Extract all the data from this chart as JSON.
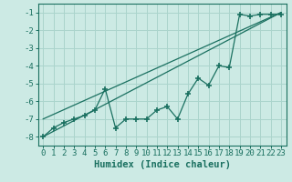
{
  "xlabel": "Humidex (Indice chaleur)",
  "xlim": [
    -0.5,
    23.5
  ],
  "ylim": [
    -8.5,
    -0.5
  ],
  "yticks": [
    -8,
    -7,
    -6,
    -5,
    -4,
    -3,
    -2,
    -1
  ],
  "xticks": [
    0,
    1,
    2,
    3,
    4,
    5,
    6,
    7,
    8,
    9,
    10,
    11,
    12,
    13,
    14,
    15,
    16,
    17,
    18,
    19,
    20,
    21,
    22,
    23
  ],
  "line_color": "#1a7060",
  "bg_color": "#cceae4",
  "grid_color": "#aad4cc",
  "line1_x": [
    0,
    1,
    2,
    3,
    4,
    5,
    6,
    7,
    8,
    9,
    10,
    11,
    12,
    13,
    14,
    15,
    16,
    17,
    18,
    19,
    20,
    21,
    22,
    23
  ],
  "line1_y": [
    -8.0,
    -7.5,
    -7.2,
    -7.0,
    -6.8,
    -6.5,
    -5.3,
    -7.5,
    -7.0,
    -7.0,
    -7.0,
    -6.5,
    -6.3,
    -7.0,
    -5.6,
    -4.7,
    -5.1,
    -4.0,
    -4.1,
    -1.1,
    -1.2,
    -1.1,
    -1.1,
    -1.1
  ],
  "line2_x": [
    0,
    23
  ],
  "line2_y": [
    -8.0,
    -1.0
  ],
  "line3_x": [
    0,
    23
  ],
  "line3_y": [
    -7.0,
    -1.0
  ],
  "tick_fontsize": 6.5,
  "xlabel_fontsize": 7.5
}
